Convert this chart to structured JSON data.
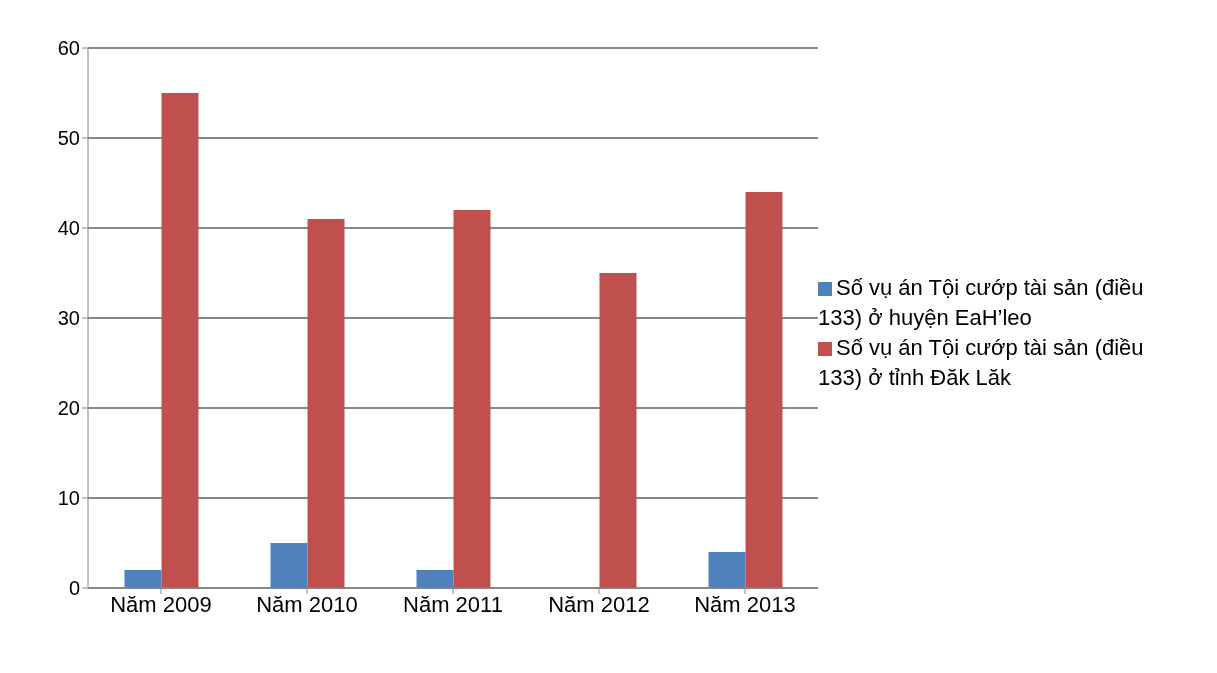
{
  "chart_data": {
    "type": "bar",
    "categories": [
      "Năm 2009",
      "Năm 2010",
      "Năm 2011",
      "Năm 2012",
      "Năm 2013"
    ],
    "series": [
      {
        "name": "Số vụ án Tội cướp tài sản (điều 133) ở huyện EaH’leo",
        "color": "#4f81bd",
        "values": [
          2,
          5,
          2,
          0,
          4
        ]
      },
      {
        "name": "Số vụ án Tội cướp tài sản (điều 133) ở tỉnh Đăk Lăk",
        "color": "#c0504d",
        "values": [
          55,
          41,
          42,
          35,
          44
        ]
      }
    ],
    "ylim": [
      0,
      60
    ],
    "yticks": [
      0,
      10,
      20,
      30,
      40,
      50,
      60
    ],
    "grid": "y",
    "legend": "right"
  }
}
